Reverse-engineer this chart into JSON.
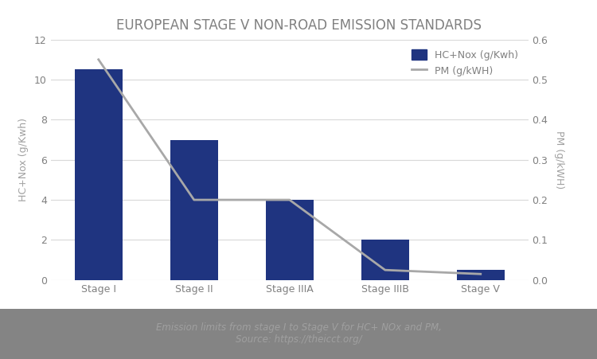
{
  "title": "EUROPEAN STAGE V NON-ROAD EMISSION STANDARDS",
  "categories": [
    "Stage I",
    "Stage II",
    "Stage IIIA",
    "Stage IIIB",
    "Stage V"
  ],
  "bar_values": [
    10.5,
    7.0,
    4.0,
    2.0,
    0.5
  ],
  "line_values": [
    0.55,
    0.2,
    0.2,
    0.025,
    0.015
  ],
  "bar_color": "#1F3480",
  "line_color": "#A8A8A8",
  "ylabel_left": "HC+Nox (g/Kwh)",
  "ylabel_right": "PM (g/kWH)",
  "ylim_left": [
    0,
    12
  ],
  "ylim_right": [
    0,
    0.6
  ],
  "yticks_left": [
    0,
    2,
    4,
    6,
    8,
    10,
    12
  ],
  "yticks_right": [
    0,
    0.1,
    0.2,
    0.3,
    0.4,
    0.5,
    0.6
  ],
  "legend_bar_label": "HC+Nox (g/Kwh)",
  "legend_line_label": "PM (g/kWH)",
  "caption_line1": "Emission limits from stage I to Stage V for HC+ NOx and PM,",
  "caption_line2": "Source: https://theicct.org/",
  "chart_bg_color": "#FFFFFF",
  "outer_bg_color": "#848484",
  "caption_color": "#A0A0A0",
  "title_color": "#808080",
  "title_fontsize": 12,
  "axis_label_color": "#A0A0A0",
  "tick_label_color": "#808080",
  "grid_color": "#D8D8D8"
}
